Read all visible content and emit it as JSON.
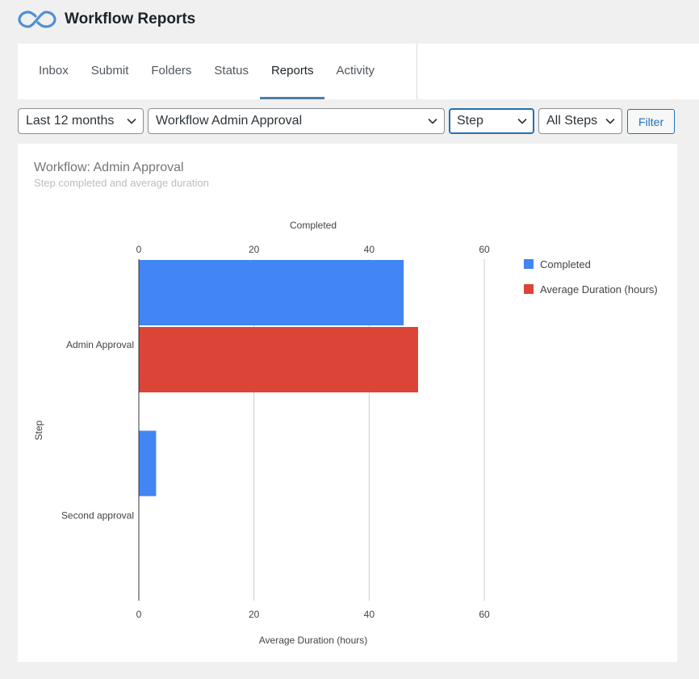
{
  "app": {
    "title": "Workflow Reports",
    "logo_icon": "infinity-loop-icon",
    "logo_color": "#4f8fd4"
  },
  "tabs": [
    {
      "label": "Inbox",
      "active": false
    },
    {
      "label": "Submit",
      "active": false
    },
    {
      "label": "Folders",
      "active": false
    },
    {
      "label": "Status",
      "active": false
    },
    {
      "label": "Reports",
      "active": true
    },
    {
      "label": "Activity",
      "active": false
    }
  ],
  "filters": {
    "period": "Last 12 months",
    "workflow": "Workflow Admin Approval",
    "group_by": "Step",
    "steps": "All Steps",
    "filter_button": "Filter"
  },
  "card": {
    "title": "Workflow: Admin Approval",
    "subtitle": "Step completed and average duration"
  },
  "chart_data": {
    "type": "bar",
    "orientation": "horizontal",
    "categories": [
      "Admin Approval",
      "Second approval"
    ],
    "series": [
      {
        "name": "Completed",
        "values": [
          46,
          3
        ],
        "color": "#4285f4",
        "axis": "top"
      },
      {
        "name": "Average Duration (hours)",
        "values": [
          48.5,
          0
        ],
        "color": "#db4437",
        "axis": "bottom"
      }
    ],
    "top_axis_label": "Completed",
    "bottom_axis_label": "Average Duration (hours)",
    "ylabel": "Step",
    "xlim": [
      0,
      60
    ],
    "ticks": [
      0,
      20,
      40,
      60
    ],
    "grid": true,
    "legend_position": "right"
  }
}
